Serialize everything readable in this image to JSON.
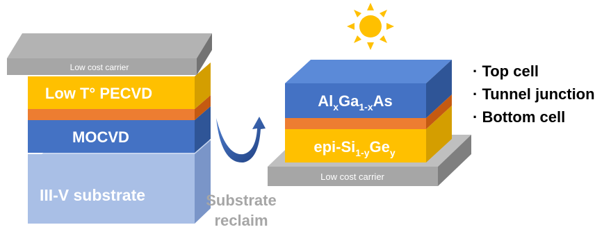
{
  "left_stack": {
    "carrier_label": "Low cost carrier",
    "pecvd_label": "Low T° PECVD",
    "mocvd_label": "MOCVD",
    "substrate_label": "III-V substrate"
  },
  "reclaim_label": {
    "line1": "Substrate",
    "line2": "reclaim"
  },
  "right_stack": {
    "top_cell": {
      "p1": "Al",
      "s1": "x",
      "p2": "Ga",
      "s2": "1-x",
      "p3": "As"
    },
    "bottom_cell": {
      "p1": "epi-Si",
      "s1": "1-y",
      "p2": "Ge",
      "s2": "y"
    },
    "carrier_label": "Low cost carrier"
  },
  "legend": {
    "items": [
      {
        "label": "· Top cell"
      },
      {
        "label": "· Tunnel junction"
      },
      {
        "label": "· Bottom cell"
      }
    ]
  },
  "colors": {
    "carrier": "#a6a6a6",
    "pecvd": "#ffc000",
    "junction": "#ed7d31",
    "mocvd": "#4472c4",
    "substrate": "#8faadc",
    "sun": "#ffc000",
    "arrow": "#2f5597",
    "reclaim_text": "#a6a6a6"
  },
  "icons": [
    "sun-icon",
    "reclaim-arrow-icon"
  ]
}
